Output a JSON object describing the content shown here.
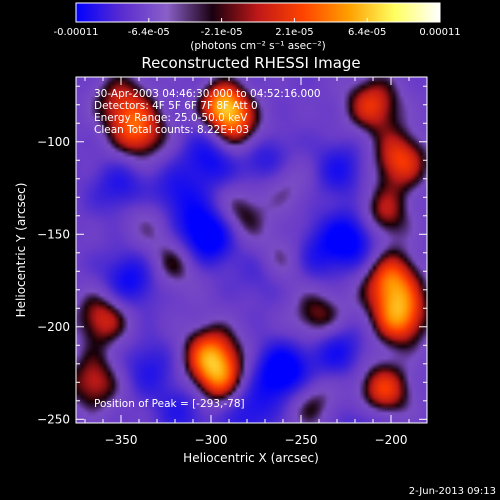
{
  "colorbar": {
    "ticks": [
      "-0.00011",
      "-6.4e-05",
      "-2.1e-05",
      "2.1e-05",
      "6.4e-05",
      "0.00011"
    ],
    "unit_label": "(photons cm⁻² s⁻¹ asec⁻²)",
    "colors": [
      "#0000ff",
      "#5a2cd0",
      "#8a60c8",
      "#1a0010",
      "#c01818",
      "#ff4400",
      "#ffa000",
      "#ffff60",
      "#ffffff"
    ]
  },
  "chart_data": {
    "type": "heatmap",
    "title": "Reconstructed RHESSI Image",
    "xlabel": "Heliocentric X (arcsec)",
    "ylabel": "Heliocentric Y (arcsec)",
    "xlim": [
      -375,
      -180
    ],
    "ylim": [
      -252,
      -65
    ],
    "xticks": [
      -350,
      -300,
      -250,
      -200
    ],
    "yticks": [
      -100,
      -150,
      -200,
      -250
    ],
    "annotations": [
      "30-Apr-2003 04:46:30.000 to 04:52:16.000",
      "Detectors: 4F 5F 6F 7F 8F  Att 0",
      "Energy Range: 25.0-50.0 keV",
      "Clean     Total counts: 8.22E+03"
    ],
    "peak_label": "Position of Peak = [-293,-78]",
    "peak": {
      "x": -293,
      "y": -78
    },
    "sources": [
      {
        "x": -293,
        "y": -80,
        "v": 1.0
      },
      {
        "x": -285,
        "y": -95,
        "v": 0.7
      },
      {
        "x": -340,
        "y": -95,
        "v": 0.75
      },
      {
        "x": -350,
        "y": -78,
        "v": 0.55
      },
      {
        "x": -210,
        "y": -80,
        "v": 0.7
      },
      {
        "x": -195,
        "y": -110,
        "v": 0.75
      },
      {
        "x": -205,
        "y": -140,
        "v": 0.6
      },
      {
        "x": -200,
        "y": -175,
        "v": 0.85
      },
      {
        "x": -195,
        "y": -195,
        "v": 0.9
      },
      {
        "x": -205,
        "y": -235,
        "v": 0.8
      },
      {
        "x": -260,
        "y": -165,
        "v": 0.7
      },
      {
        "x": -240,
        "y": -195,
        "v": 0.55
      },
      {
        "x": -320,
        "y": -165,
        "v": 0.45
      },
      {
        "x": -285,
        "y": -140,
        "v": 0.5
      },
      {
        "x": -300,
        "y": -215,
        "v": 0.85
      },
      {
        "x": -295,
        "y": -230,
        "v": 0.7
      },
      {
        "x": -360,
        "y": -195,
        "v": 0.65
      },
      {
        "x": -365,
        "y": -230,
        "v": 0.6
      },
      {
        "x": -260,
        "y": -120,
        "v": 0.4
      },
      {
        "x": -245,
        "y": -240,
        "v": 0.45
      },
      {
        "x": -335,
        "y": -140,
        "v": 0.35
      },
      {
        "x": -300,
        "y": -108,
        "v": -0.6
      },
      {
        "x": -320,
        "y": -130,
        "v": -0.5
      },
      {
        "x": -302,
        "y": -150,
        "v": -1.0
      },
      {
        "x": -270,
        "y": -110,
        "v": -0.6
      },
      {
        "x": -268,
        "y": -170,
        "v": -0.45
      },
      {
        "x": -245,
        "y": -162,
        "v": -0.5
      },
      {
        "x": -222,
        "y": -152,
        "v": -0.8
      },
      {
        "x": -228,
        "y": -115,
        "v": -0.45
      },
      {
        "x": -345,
        "y": -175,
        "v": -0.6
      },
      {
        "x": -350,
        "y": -125,
        "v": -0.45
      },
      {
        "x": -335,
        "y": -222,
        "v": -0.4
      },
      {
        "x": -260,
        "y": -225,
        "v": -0.9
      },
      {
        "x": -230,
        "y": -212,
        "v": -0.55
      },
      {
        "x": -280,
        "y": -245,
        "v": -0.5
      },
      {
        "x": -315,
        "y": -245,
        "v": -0.4
      },
      {
        "x": -215,
        "y": -250,
        "v": -0.35
      }
    ]
  },
  "footer": {
    "timestamp": "2-Jun-2013 09:13"
  }
}
